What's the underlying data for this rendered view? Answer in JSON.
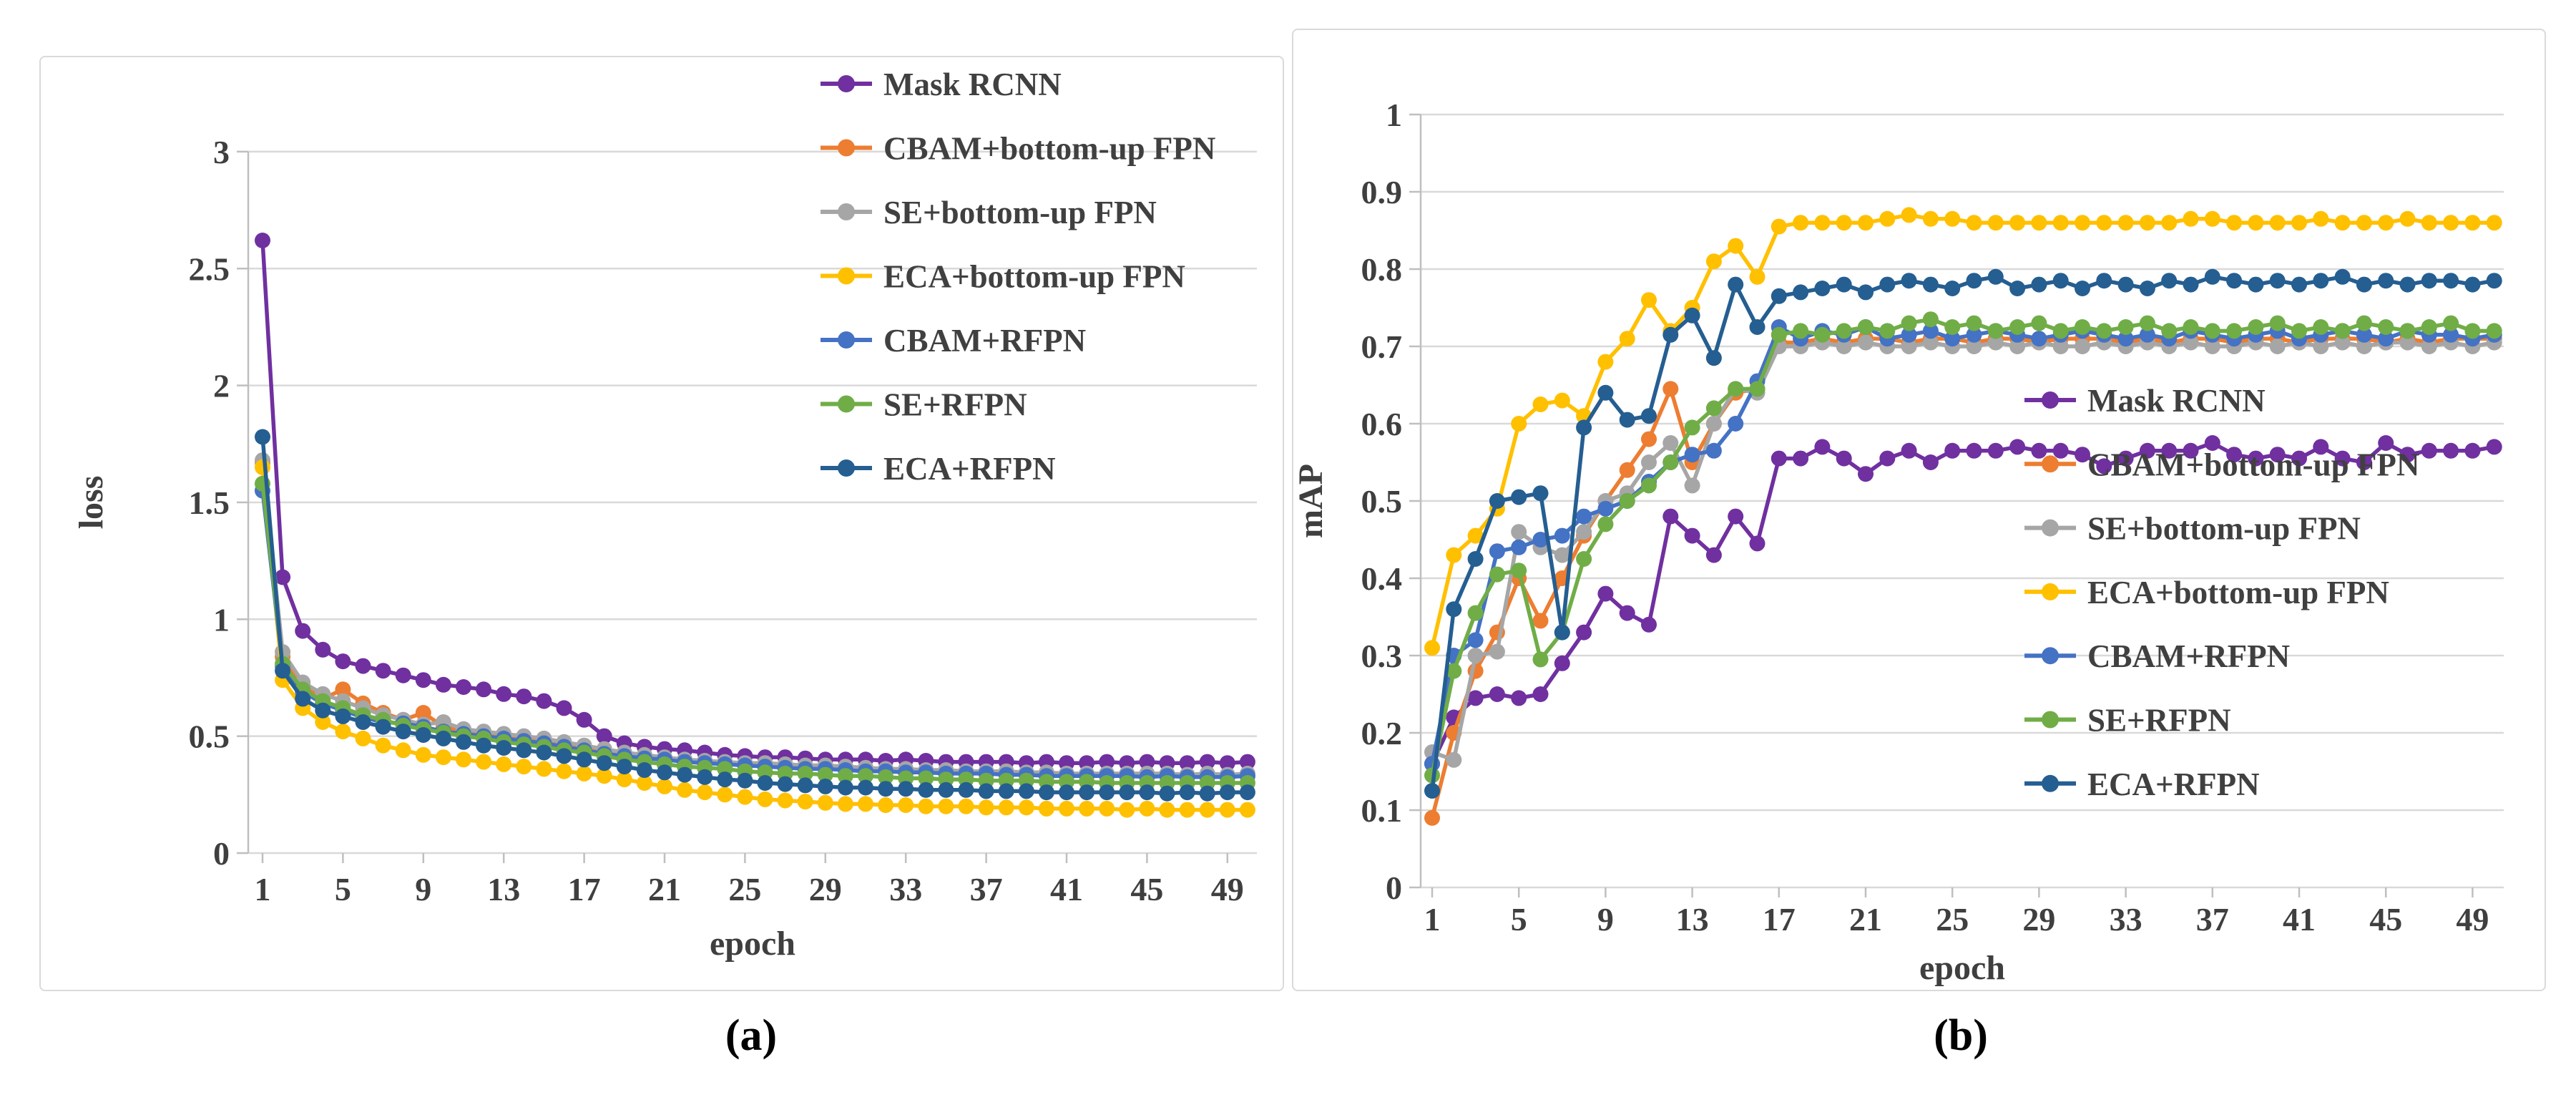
{
  "figure": {
    "caption_a": "(a)",
    "caption_b": "(b)"
  },
  "colors": {
    "gridline": "#D9D9D9",
    "axis": "#BFBFBF",
    "tick_text": "#3F3F3F",
    "legend_text": "#404040"
  },
  "chart_data": [
    {
      "id": "loss-chart",
      "type": "line",
      "title": "",
      "xlabel": "epoch",
      "ylabel": "loss",
      "xlim": [
        1,
        50
      ],
      "ylim": [
        0,
        3
      ],
      "grid": true,
      "legend_position": "top-right",
      "x_tick_labels": [
        "1",
        "5",
        "9",
        "13",
        "17",
        "21",
        "25",
        "29",
        "33",
        "37",
        "41",
        "45",
        "49"
      ],
      "x_tick_values": [
        1,
        5,
        9,
        13,
        17,
        21,
        25,
        29,
        33,
        37,
        41,
        45,
        49
      ],
      "y_tick_labels": [
        "3",
        "2.5",
        "2",
        "1.5",
        "1",
        "0.5",
        "0"
      ],
      "y_tick_values": [
        3,
        2.5,
        2,
        1.5,
        1,
        0.5,
        0
      ],
      "series": [
        {
          "name": "Mask RCNN",
          "color": "#7030A0",
          "values": [
            2.62,
            1.18,
            0.95,
            0.87,
            0.82,
            0.8,
            0.78,
            0.76,
            0.74,
            0.72,
            0.71,
            0.7,
            0.68,
            0.67,
            0.65,
            0.62,
            0.57,
            0.5,
            0.47,
            0.455,
            0.445,
            0.44,
            0.43,
            0.42,
            0.415,
            0.41,
            0.41,
            0.405,
            0.4,
            0.4,
            0.4,
            0.395,
            0.4,
            0.395,
            0.39,
            0.39,
            0.39,
            0.39,
            0.385,
            0.39,
            0.385,
            0.385,
            0.39,
            0.385,
            0.39,
            0.385,
            0.385,
            0.39,
            0.385,
            0.39
          ]
        },
        {
          "name": "CBAM+bottom-up FPN",
          "color": "#ED7D31",
          "values": [
            1.67,
            0.84,
            0.72,
            0.66,
            0.7,
            0.64,
            0.6,
            0.57,
            0.6,
            0.54,
            0.52,
            0.51,
            0.5,
            0.49,
            0.475,
            0.46,
            0.445,
            0.43,
            0.42,
            0.41,
            0.4,
            0.395,
            0.39,
            0.385,
            0.38,
            0.375,
            0.37,
            0.37,
            0.365,
            0.36,
            0.36,
            0.355,
            0.355,
            0.35,
            0.35,
            0.345,
            0.345,
            0.34,
            0.34,
            0.34,
            0.335,
            0.335,
            0.335,
            0.33,
            0.33,
            0.33,
            0.33,
            0.33,
            0.33,
            0.33
          ]
        },
        {
          "name": "SE+bottom-up FPN",
          "color": "#A6A6A6",
          "values": [
            1.68,
            0.86,
            0.73,
            0.68,
            0.65,
            0.62,
            0.59,
            0.57,
            0.55,
            0.56,
            0.53,
            0.52,
            0.51,
            0.5,
            0.49,
            0.475,
            0.46,
            0.445,
            0.43,
            0.42,
            0.41,
            0.4,
            0.395,
            0.39,
            0.385,
            0.385,
            0.38,
            0.375,
            0.375,
            0.37,
            0.365,
            0.36,
            0.36,
            0.355,
            0.355,
            0.35,
            0.35,
            0.35,
            0.345,
            0.345,
            0.34,
            0.34,
            0.34,
            0.34,
            0.34,
            0.34,
            0.335,
            0.34,
            0.335,
            0.34
          ]
        },
        {
          "name": "ECA+bottom-up FPN",
          "color": "#FFC000",
          "values": [
            1.65,
            0.74,
            0.62,
            0.56,
            0.52,
            0.49,
            0.46,
            0.44,
            0.42,
            0.41,
            0.4,
            0.39,
            0.38,
            0.37,
            0.36,
            0.35,
            0.34,
            0.33,
            0.315,
            0.3,
            0.285,
            0.27,
            0.26,
            0.25,
            0.24,
            0.23,
            0.225,
            0.22,
            0.215,
            0.21,
            0.21,
            0.205,
            0.205,
            0.2,
            0.2,
            0.2,
            0.195,
            0.195,
            0.195,
            0.19,
            0.19,
            0.19,
            0.19,
            0.185,
            0.19,
            0.185,
            0.185,
            0.185,
            0.185,
            0.185
          ]
        },
        {
          "name": "CBAM+RFPN",
          "color": "#4472C4",
          "values": [
            1.55,
            0.8,
            0.69,
            0.64,
            0.61,
            0.58,
            0.56,
            0.555,
            0.54,
            0.52,
            0.51,
            0.5,
            0.49,
            0.48,
            0.47,
            0.455,
            0.44,
            0.425,
            0.415,
            0.405,
            0.4,
            0.39,
            0.385,
            0.38,
            0.375,
            0.37,
            0.365,
            0.36,
            0.36,
            0.355,
            0.35,
            0.35,
            0.345,
            0.345,
            0.34,
            0.34,
            0.34,
            0.335,
            0.335,
            0.33,
            0.33,
            0.33,
            0.33,
            0.33,
            0.325,
            0.33,
            0.325,
            0.325,
            0.325,
            0.33
          ]
        },
        {
          "name": "SE+RFPN",
          "color": "#70AD47",
          "values": [
            1.58,
            0.81,
            0.7,
            0.65,
            0.62,
            0.59,
            0.57,
            0.545,
            0.53,
            0.515,
            0.5,
            0.49,
            0.475,
            0.465,
            0.455,
            0.44,
            0.43,
            0.415,
            0.4,
            0.39,
            0.38,
            0.37,
            0.365,
            0.36,
            0.35,
            0.345,
            0.34,
            0.34,
            0.335,
            0.33,
            0.33,
            0.325,
            0.32,
            0.32,
            0.315,
            0.315,
            0.31,
            0.31,
            0.31,
            0.305,
            0.305,
            0.305,
            0.3,
            0.3,
            0.3,
            0.3,
            0.3,
            0.3,
            0.3,
            0.3
          ]
        },
        {
          "name": "ECA+RFPN",
          "color": "#255E91",
          "values": [
            1.78,
            0.78,
            0.66,
            0.61,
            0.585,
            0.56,
            0.54,
            0.52,
            0.505,
            0.49,
            0.475,
            0.46,
            0.45,
            0.44,
            0.43,
            0.415,
            0.4,
            0.385,
            0.37,
            0.355,
            0.345,
            0.335,
            0.325,
            0.315,
            0.31,
            0.3,
            0.295,
            0.29,
            0.285,
            0.28,
            0.28,
            0.275,
            0.275,
            0.27,
            0.27,
            0.27,
            0.265,
            0.265,
            0.265,
            0.26,
            0.26,
            0.26,
            0.26,
            0.26,
            0.26,
            0.255,
            0.26,
            0.255,
            0.26,
            0.26
          ]
        }
      ]
    },
    {
      "id": "map-chart",
      "type": "line",
      "title": "",
      "xlabel": "epoch",
      "ylabel": "mAP",
      "xlim": [
        1,
        50
      ],
      "ylim": [
        0,
        1
      ],
      "grid": true,
      "legend_position": "middle-right",
      "x_tick_labels": [
        "1",
        "5",
        "9",
        "13",
        "17",
        "21",
        "25",
        "29",
        "33",
        "37",
        "41",
        "45",
        "49"
      ],
      "x_tick_values": [
        1,
        5,
        9,
        13,
        17,
        21,
        25,
        29,
        33,
        37,
        41,
        45,
        49
      ],
      "y_tick_labels": [
        "1",
        "0.9",
        "0.8",
        "0.7",
        "0.6",
        "0.5",
        "0.4",
        "0.3",
        "0.2",
        "0.1",
        "0"
      ],
      "y_tick_values": [
        1,
        0.9,
        0.8,
        0.7,
        0.6,
        0.5,
        0.4,
        0.3,
        0.2,
        0.1,
        0
      ],
      "series": [
        {
          "name": "Mask RCNN",
          "color": "#7030A0",
          "values": [
            0.16,
            0.22,
            0.245,
            0.25,
            0.245,
            0.25,
            0.29,
            0.33,
            0.38,
            0.355,
            0.34,
            0.48,
            0.455,
            0.43,
            0.48,
            0.445,
            0.555,
            0.555,
            0.57,
            0.555,
            0.535,
            0.555,
            0.565,
            0.55,
            0.565,
            0.565,
            0.565,
            0.57,
            0.565,
            0.565,
            0.56,
            0.545,
            0.555,
            0.565,
            0.565,
            0.565,
            0.575,
            0.56,
            0.555,
            0.56,
            0.555,
            0.57,
            0.555,
            0.55,
            0.575,
            0.56,
            0.565,
            0.565,
            0.565,
            0.57
          ]
        },
        {
          "name": "CBAM+bottom-up FPN",
          "color": "#ED7D31",
          "values": [
            0.09,
            0.2,
            0.28,
            0.33,
            0.4,
            0.345,
            0.4,
            0.455,
            0.5,
            0.54,
            0.58,
            0.645,
            0.55,
            0.6,
            0.64,
            0.645,
            0.705,
            0.705,
            0.71,
            0.705,
            0.71,
            0.71,
            0.705,
            0.71,
            0.71,
            0.705,
            0.71,
            0.71,
            0.705,
            0.71,
            0.71,
            0.71,
            0.705,
            0.71,
            0.705,
            0.71,
            0.71,
            0.705,
            0.71,
            0.71,
            0.705,
            0.71,
            0.71,
            0.71,
            0.705,
            0.71,
            0.705,
            0.71,
            0.71,
            0.71
          ]
        },
        {
          "name": "SE+bottom-up FPN",
          "color": "#A6A6A6",
          "values": [
            0.175,
            0.165,
            0.3,
            0.305,
            0.46,
            0.44,
            0.43,
            0.46,
            0.5,
            0.51,
            0.55,
            0.575,
            0.52,
            0.6,
            0.645,
            0.64,
            0.7,
            0.7,
            0.705,
            0.7,
            0.705,
            0.7,
            0.7,
            0.705,
            0.7,
            0.7,
            0.705,
            0.7,
            0.705,
            0.7,
            0.7,
            0.705,
            0.7,
            0.705,
            0.7,
            0.705,
            0.7,
            0.7,
            0.705,
            0.7,
            0.705,
            0.7,
            0.705,
            0.7,
            0.705,
            0.705,
            0.7,
            0.705,
            0.7,
            0.705
          ]
        },
        {
          "name": "ECA+bottom-up FPN",
          "color": "#FFC000",
          "values": [
            0.31,
            0.43,
            0.455,
            0.49,
            0.6,
            0.625,
            0.63,
            0.61,
            0.68,
            0.71,
            0.76,
            0.72,
            0.75,
            0.81,
            0.83,
            0.79,
            0.855,
            0.86,
            0.86,
            0.86,
            0.86,
            0.865,
            0.87,
            0.865,
            0.865,
            0.86,
            0.86,
            0.86,
            0.86,
            0.86,
            0.86,
            0.86,
            0.86,
            0.86,
            0.86,
            0.865,
            0.865,
            0.86,
            0.86,
            0.86,
            0.86,
            0.865,
            0.86,
            0.86,
            0.86,
            0.865,
            0.86,
            0.86,
            0.86,
            0.86
          ]
        },
        {
          "name": "CBAM+RFPN",
          "color": "#4472C4",
          "values": [
            0.16,
            0.3,
            0.32,
            0.435,
            0.44,
            0.45,
            0.455,
            0.48,
            0.49,
            0.5,
            0.525,
            0.55,
            0.56,
            0.565,
            0.6,
            0.655,
            0.725,
            0.71,
            0.72,
            0.715,
            0.725,
            0.71,
            0.715,
            0.72,
            0.71,
            0.715,
            0.72,
            0.715,
            0.71,
            0.715,
            0.72,
            0.715,
            0.71,
            0.715,
            0.71,
            0.72,
            0.715,
            0.71,
            0.715,
            0.72,
            0.71,
            0.715,
            0.72,
            0.715,
            0.71,
            0.72,
            0.715,
            0.715,
            0.71,
            0.715
          ]
        },
        {
          "name": "SE+RFPN",
          "color": "#70AD47",
          "values": [
            0.145,
            0.28,
            0.355,
            0.405,
            0.41,
            0.295,
            0.33,
            0.425,
            0.47,
            0.5,
            0.52,
            0.55,
            0.595,
            0.62,
            0.645,
            0.645,
            0.715,
            0.72,
            0.715,
            0.72,
            0.725,
            0.72,
            0.73,
            0.735,
            0.725,
            0.73,
            0.72,
            0.725,
            0.73,
            0.72,
            0.725,
            0.72,
            0.725,
            0.73,
            0.72,
            0.725,
            0.72,
            0.72,
            0.725,
            0.73,
            0.72,
            0.725,
            0.72,
            0.73,
            0.725,
            0.72,
            0.725,
            0.73,
            0.72,
            0.72
          ]
        },
        {
          "name": "ECA+RFPN",
          "color": "#255E91",
          "values": [
            0.125,
            0.36,
            0.425,
            0.5,
            0.505,
            0.51,
            0.33,
            0.595,
            0.64,
            0.605,
            0.61,
            0.715,
            0.74,
            0.685,
            0.78,
            0.725,
            0.765,
            0.77,
            0.775,
            0.78,
            0.77,
            0.78,
            0.785,
            0.78,
            0.775,
            0.785,
            0.79,
            0.775,
            0.78,
            0.785,
            0.775,
            0.785,
            0.78,
            0.775,
            0.785,
            0.78,
            0.79,
            0.785,
            0.78,
            0.785,
            0.78,
            0.785,
            0.79,
            0.78,
            0.785,
            0.78,
            0.785,
            0.785,
            0.78,
            0.785
          ]
        }
      ]
    }
  ]
}
